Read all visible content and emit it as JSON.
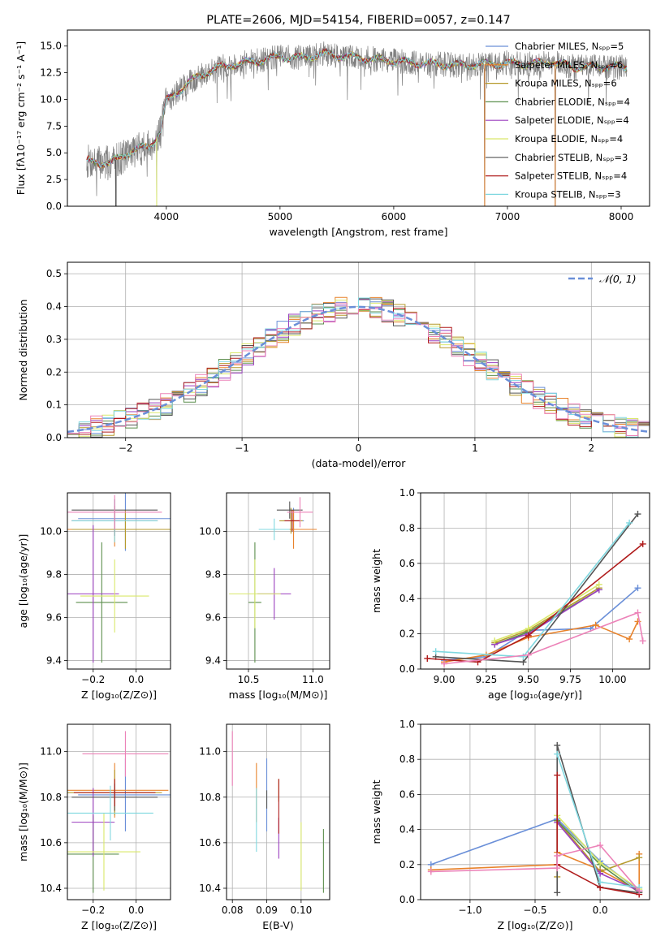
{
  "colors": [
    "#6a8fd8",
    "#e8832c",
    "#b69a2b",
    "#5c8f4e",
    "#9b3fbf",
    "#d9e86a",
    "#555555",
    "#b01c1c",
    "#80d8e0",
    "#ec82b8"
  ],
  "chart_data": [
    {
      "id": "spectrum",
      "type": "line",
      "title": "PLATE=2606, MJD=54154, FIBERID=0057, z=0.147",
      "xlabel": "wavelength [Angstrom, rest frame]",
      "ylabel": "Flux [fλ10⁻¹⁷ erg cm⁻² s⁻¹ A⁻¹]",
      "xlim": [
        3130,
        8250
      ],
      "ylim": [
        0,
        16.5
      ],
      "xticks": [
        4000,
        5000,
        6000,
        7000,
        8000
      ],
      "yticks": [
        0.0,
        2.5,
        5.0,
        7.5,
        10.0,
        12.5,
        15.0
      ],
      "legend_position": "top-right",
      "legend": [
        "Chabrier MILES, Nₛₚₚ=5",
        "Salpeter MILES, Nₛₚₚ=6",
        "Kroupa MILES, Nₛₚₚ=6",
        "Chabrier ELODIE, Nₛₚₚ=4",
        "Salpeter ELODIE, Nₛₚₚ=4",
        "Kroupa ELODIE, Nₛₚₚ=4",
        "Chabrier STELIB, Nₛₚₚ=3",
        "Salpeter STELIB, Nₛₚₚ=4",
        "Kroupa STELIB, Nₛₚₚ=3"
      ],
      "data_color": "#808080",
      "continuum": [
        [
          3300,
          4.2
        ],
        [
          3500,
          4.0
        ],
        [
          3700,
          5.2
        ],
        [
          3850,
          5.6
        ],
        [
          3950,
          7.0
        ],
        [
          4000,
          9.8
        ],
        [
          4200,
          11.6
        ],
        [
          4400,
          12.8
        ],
        [
          4600,
          13.3
        ],
        [
          4800,
          13.6
        ],
        [
          4900,
          13.8
        ],
        [
          5000,
          14.0
        ],
        [
          5200,
          13.9
        ],
        [
          5400,
          14.3
        ],
        [
          5600,
          14.0
        ],
        [
          5800,
          13.8
        ],
        [
          6000,
          13.6
        ],
        [
          6200,
          13.4
        ],
        [
          6400,
          13.3
        ],
        [
          6600,
          13.2
        ],
        [
          6800,
          13.3
        ],
        [
          7000,
          13.4
        ],
        [
          7200,
          13.3
        ],
        [
          7400,
          13.5
        ],
        [
          7600,
          13.0
        ],
        [
          7800,
          13.1
        ],
        [
          8050,
          13.0
        ]
      ],
      "spikes": [
        [
          3555,
          0
        ],
        [
          3560,
          0
        ],
        [
          3915,
          0
        ],
        [
          6800,
          0
        ],
        [
          7420,
          0
        ]
      ],
      "noise_amplitude": 1.2
    },
    {
      "id": "residuals",
      "type": "bar",
      "xlabel": "(data-model)/error",
      "ylabel": "Normed distribution",
      "xlim": [
        -2.5,
        2.5
      ],
      "ylim": [
        0,
        0.535
      ],
      "xticks": [
        -2,
        -1,
        0,
        1,
        2
      ],
      "yticks": [
        0.0,
        0.1,
        0.2,
        0.3,
        0.4,
        0.5
      ],
      "bin_width": 0.1,
      "bin_start": -2.5,
      "legend": [
        "𝒩(0, 1)"
      ],
      "legend_position": "top-right",
      "gaussian": {
        "mean": 0,
        "sigma": 1,
        "color": "#6a8fd8"
      },
      "jitter": 0.035
    },
    {
      "id": "age-vs-Z",
      "type": "scatter",
      "xlabel": "Z [log₁₀(Z/Z⊙)]",
      "ylabel": "age  [log₁₀(age/yr)]",
      "xlim": [
        -0.32,
        0.16
      ],
      "ylim": [
        9.36,
        10.18
      ],
      "xticks": [
        -0.2,
        0.0
      ],
      "yticks": [
        9.4,
        9.6,
        9.8,
        10.0
      ],
      "points": [
        {
          "x": -0.05,
          "y": 10.06,
          "xerr": 0.22,
          "yerr": 0.15
        },
        {
          "x": -0.1,
          "y": 10.01,
          "xerr": 0.25,
          "yerr": 0.08
        },
        {
          "x": -0.05,
          "y": 10.01,
          "xerr": 0.25,
          "yerr": 0.09
        },
        {
          "x": -0.16,
          "y": 9.67,
          "xerr": 0.12,
          "yerr": 0.28
        },
        {
          "x": -0.2,
          "y": 9.71,
          "xerr": 0.12,
          "yerr": 0.32
        },
        {
          "x": -0.1,
          "y": 9.7,
          "xerr": 0.16,
          "yerr": 0.17
        },
        {
          "x": -0.1,
          "y": 10.1,
          "xerr": 0.2,
          "yerr": 0.05
        },
        {
          "x": -0.1,
          "y": 10.05,
          "xerr": 0.2,
          "yerr": 0.07
        },
        {
          "x": -0.1,
          "y": 10.05,
          "xerr": 0.2,
          "yerr": 0.1
        },
        {
          "x": -0.1,
          "y": 10.09,
          "xerr": 0.22,
          "yerr": 0.08
        }
      ]
    },
    {
      "id": "age-vs-mass",
      "type": "scatter",
      "xlabel": "mass [log₁₀(M/M⊙)]",
      "ylabel": "",
      "xlim": [
        10.33,
        11.13
      ],
      "ylim": [
        9.36,
        10.18
      ],
      "xticks": [
        10.5,
        11.0
      ],
      "yticks": [
        9.4,
        9.6,
        9.8,
        10.0
      ],
      "points": [
        {
          "x": 10.85,
          "y": 10.05,
          "xerr": 0.08,
          "yerr": 0.06
        },
        {
          "x": 10.85,
          "y": 10.01,
          "xerr": 0.18,
          "yerr": 0.09
        },
        {
          "x": 10.83,
          "y": 10.05,
          "xerr": 0.09,
          "yerr": 0.06
        },
        {
          "x": 10.55,
          "y": 9.67,
          "xerr": 0.05,
          "yerr": 0.28
        },
        {
          "x": 10.7,
          "y": 9.71,
          "xerr": 0.13,
          "yerr": 0.12
        },
        {
          "x": 10.55,
          "y": 9.71,
          "xerr": 0.2,
          "yerr": 0.16
        },
        {
          "x": 10.82,
          "y": 10.1,
          "xerr": 0.1,
          "yerr": 0.04
        },
        {
          "x": 10.84,
          "y": 10.05,
          "xerr": 0.06,
          "yerr": 0.05
        },
        {
          "x": 10.7,
          "y": 10.01,
          "xerr": 0.12,
          "yerr": 0.05
        },
        {
          "x": 10.9,
          "y": 10.09,
          "xerr": 0.1,
          "yerr": 0.07
        }
      ]
    },
    {
      "id": "weight-vs-age",
      "type": "line",
      "xlabel": "age  [log₁₀(age/yr)]",
      "ylabel": "mass weight",
      "xlim": [
        8.86,
        10.22
      ],
      "ylim": [
        0,
        1.0
      ],
      "xticks": [
        9.0,
        9.25,
        9.5,
        9.75,
        10.0
      ],
      "yticks": [
        0.0,
        0.2,
        0.4,
        0.6,
        0.8,
        1.0
      ],
      "series": [
        {
          "points": [
            [
              9.0,
              0.05
            ],
            [
              9.25,
              0.07
            ],
            [
              9.5,
              0.22
            ],
            [
              9.87,
              0.23
            ],
            [
              10.15,
              0.46
            ]
          ]
        },
        {
          "points": [
            [
              9.0,
              0.04
            ],
            [
              9.25,
              0.08
            ],
            [
              9.5,
              0.18
            ],
            [
              9.9,
              0.25
            ],
            [
              10.1,
              0.17
            ],
            [
              10.15,
              0.27
            ]
          ]
        },
        {
          "points": [
            [
              9.3,
              0.15
            ],
            [
              9.5,
              0.22
            ],
            [
              9.92,
              0.46
            ]
          ]
        },
        {
          "points": [
            [
              9.3,
              0.14
            ],
            [
              9.5,
              0.21
            ],
            [
              9.92,
              0.45
            ]
          ]
        },
        {
          "points": [
            [
              9.3,
              0.14
            ],
            [
              9.5,
              0.2
            ],
            [
              9.92,
              0.45
            ]
          ]
        },
        {
          "points": [
            [
              9.3,
              0.16
            ],
            [
              9.5,
              0.23
            ],
            [
              9.92,
              0.48
            ]
          ]
        },
        {
          "points": [
            [
              8.95,
              0.07
            ],
            [
              9.47,
              0.04
            ],
            [
              10.15,
              0.88
            ]
          ]
        },
        {
          "points": [
            [
              8.9,
              0.06
            ],
            [
              9.2,
              0.04
            ],
            [
              9.5,
              0.19
            ],
            [
              10.18,
              0.71
            ]
          ]
        },
        {
          "points": [
            [
              8.95,
              0.1
            ],
            [
              9.47,
              0.07
            ],
            [
              10.1,
              0.83
            ]
          ]
        },
        {
          "points": [
            [
              9.0,
              0.03
            ],
            [
              9.5,
              0.08
            ],
            [
              10.15,
              0.32
            ],
            [
              10.18,
              0.16
            ]
          ]
        }
      ]
    },
    {
      "id": "mass-vs-Z",
      "type": "scatter",
      "xlabel": "Z [log₁₀(Z/Z⊙)]",
      "ylabel": "mass [log₁₀(M/M⊙)]",
      "xlim": [
        -0.32,
        0.16
      ],
      "ylim": [
        10.35,
        11.12
      ],
      "xticks": [
        -0.2,
        0.0
      ],
      "yticks": [
        10.4,
        10.6,
        10.8,
        11.0
      ],
      "points": [
        {
          "x": -0.05,
          "y": 10.81,
          "xerr": 0.22,
          "yerr": 0.16
        },
        {
          "x": -0.1,
          "y": 10.83,
          "xerr": 0.25,
          "yerr": 0.12
        },
        {
          "x": -0.1,
          "y": 10.82,
          "xerr": 0.22,
          "yerr": 0.1
        },
        {
          "x": -0.2,
          "y": 10.55,
          "xerr": 0.12,
          "yerr": 0.17
        },
        {
          "x": -0.2,
          "y": 10.69,
          "xerr": 0.1,
          "yerr": 0.15
        },
        {
          "x": -0.15,
          "y": 10.56,
          "xerr": 0.17,
          "yerr": 0.17
        },
        {
          "x": -0.1,
          "y": 10.8,
          "xerr": 0.2,
          "yerr": 0.06
        },
        {
          "x": -0.1,
          "y": 10.82,
          "xerr": 0.19,
          "yerr": 0.06
        },
        {
          "x": -0.12,
          "y": 10.73,
          "xerr": 0.2,
          "yerr": 0.12
        },
        {
          "x": -0.05,
          "y": 10.99,
          "xerr": 0.2,
          "yerr": 0.1
        }
      ]
    },
    {
      "id": "mass-vs-EBV",
      "type": "scatter",
      "xlabel": "E(B-V)",
      "ylabel": "",
      "xlim": [
        0.0783,
        0.1083
      ],
      "ylim": [
        10.35,
        11.12
      ],
      "xticks": [
        0.08,
        0.09,
        0.1
      ],
      "yticks": [
        10.4,
        10.6,
        10.8,
        11.0
      ],
      "points": [
        {
          "x": 0.09,
          "y": 10.81,
          "xerr": 0,
          "yerr": 0.16
        },
        {
          "x": 0.087,
          "y": 10.82,
          "xerr": 0,
          "yerr": 0.13
        },
        {
          "x": 0.0935,
          "y": 10.83,
          "xerr": 0,
          "yerr": 0.05
        },
        {
          "x": 0.1065,
          "y": 10.52,
          "xerr": 0,
          "yerr": 0.14
        },
        {
          "x": 0.0935,
          "y": 10.62,
          "xerr": 0,
          "yerr": 0.09
        },
        {
          "x": 0.1,
          "y": 10.54,
          "xerr": 0,
          "yerr": 0.15
        },
        {
          "x": 0.09,
          "y": 10.79,
          "xerr": 0,
          "yerr": 0.04
        },
        {
          "x": 0.0935,
          "y": 10.76,
          "xerr": 0,
          "yerr": 0.12
        },
        {
          "x": 0.087,
          "y": 10.7,
          "xerr": 0,
          "yerr": 0.14
        },
        {
          "x": 0.08,
          "y": 10.97,
          "xerr": 0,
          "yerr": 0.12
        }
      ]
    },
    {
      "id": "weight-vs-Z",
      "type": "line",
      "xlabel": "Z [log₁₀(Z/Z⊙)]",
      "ylabel": "mass weight",
      "xlim": [
        -1.38,
        0.38
      ],
      "ylim": [
        0,
        1.0
      ],
      "xticks": [
        -1.0,
        -0.5,
        0.0
      ],
      "yticks": [
        0.0,
        0.2,
        0.4,
        0.6,
        0.8,
        1.0
      ],
      "series": [
        {
          "points": [
            [
              -1.3,
              0.2
            ],
            [
              -0.33,
              0.46
            ],
            [
              0.0,
              0.22
            ],
            [
              0.3,
              0.05
            ]
          ]
        },
        {
          "points": [
            [
              -1.3,
              0.17
            ],
            [
              -0.33,
              0.2
            ],
            [
              -0.33,
              0.27
            ],
            [
              0.0,
              0.17
            ],
            [
              0.3,
              0.05
            ],
            [
              0.3,
              0.26
            ]
          ]
        },
        {
          "points": [
            [
              -0.33,
              0.13
            ],
            [
              -0.33,
              0.45
            ],
            [
              0.0,
              0.16
            ],
            [
              0.3,
              0.24
            ]
          ]
        },
        {
          "points": [
            [
              -0.33,
              0.45
            ],
            [
              0.0,
              0.2
            ],
            [
              0.3,
              0.04
            ]
          ]
        },
        {
          "points": [
            [
              -0.33,
              0.44
            ],
            [
              0.0,
              0.15
            ],
            [
              0.3,
              0.05
            ]
          ]
        },
        {
          "points": [
            [
              -0.33,
              0.48
            ],
            [
              0.0,
              0.21
            ],
            [
              0.3,
              0.06
            ]
          ]
        },
        {
          "points": [
            [
              -0.33,
              0.04
            ],
            [
              -0.33,
              0.88
            ],
            [
              0.0,
              0.07
            ],
            [
              0.3,
              0.04
            ]
          ]
        },
        {
          "points": [
            [
              -0.33,
              0.71
            ],
            [
              -0.33,
              0.2
            ],
            [
              0.0,
              0.07
            ],
            [
              0.3,
              0.03
            ]
          ]
        },
        {
          "points": [
            [
              -0.33,
              0.83
            ],
            [
              0.0,
              0.1
            ],
            [
              0.3,
              0.07
            ]
          ]
        },
        {
          "points": [
            [
              -1.3,
              0.16
            ],
            [
              -0.33,
              0.18
            ],
            [
              -0.33,
              0.25
            ],
            [
              0.0,
              0.31
            ],
            [
              0.3,
              0.05
            ]
          ]
        }
      ]
    }
  ]
}
